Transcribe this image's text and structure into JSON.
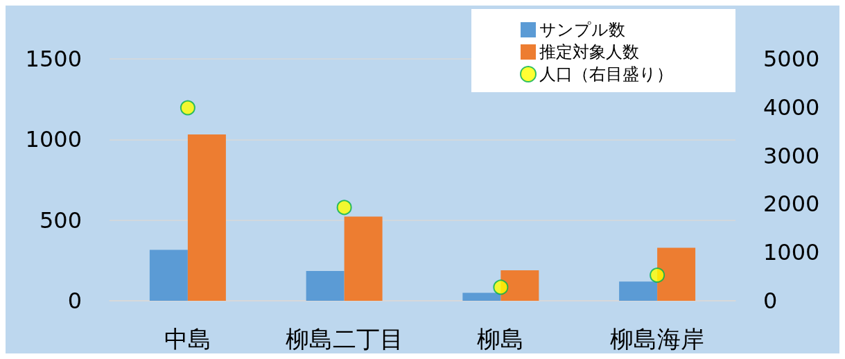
{
  "chart_data": {
    "type": "bar",
    "categories": [
      "中島",
      "柳島二丁目",
      "柳島",
      "柳島海岸"
    ],
    "series": [
      {
        "name": "サンプル数",
        "color": "#5b9bd5",
        "values": [
          316,
          185,
          49,
          119
        ]
      },
      {
        "name": "推定対象人数",
        "color": "#ed7d31",
        "values": [
          1031,
          522,
          189,
          329
        ]
      },
      {
        "name": "人口（右目盛り）",
        "type": "scatter",
        "axis": "y2",
        "color": "#ffff00",
        "values": [
          3990,
          1930,
          280,
          530
        ]
      }
    ],
    "ylim": [
      0,
      1500
    ],
    "yticks": [
      0,
      500,
      1000,
      1500
    ],
    "y2lim": [
      0,
      5000
    ],
    "y2ticks": [
      0,
      1000,
      2000,
      3000,
      4000,
      5000
    ],
    "grid": "y",
    "legend": "top right",
    "marker": "circle"
  }
}
